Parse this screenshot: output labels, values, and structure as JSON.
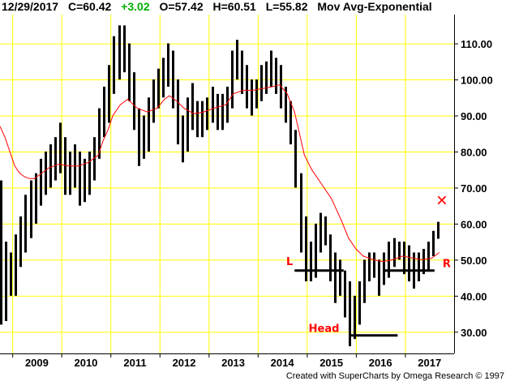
{
  "header": {
    "date": "12/29/2017",
    "close": "C=60.42",
    "change": "+3.02",
    "open": "O=57.42",
    "high": "H=60.51",
    "low": "L=55.82",
    "indicator": "Mov Avg-Exponential"
  },
  "footer": {
    "credit": "Created with SuperCharts by Omega Research © 1997"
  },
  "colors": {
    "background": "#ffffff",
    "grid": "#ffff00",
    "bars": "#000000",
    "moving_average": "#ff0000",
    "annotation": "#ff0000",
    "positive_change": "#00b000"
  },
  "annotations": {
    "left_shoulder": "L",
    "head": "Head",
    "right_shoulder": "R",
    "marker": "✕"
  },
  "chart_data": {
    "type": "bar",
    "title": "",
    "xlabel": "",
    "ylabel": "",
    "x_tick_labels": [
      "2009",
      "2010",
      "2011",
      "2012",
      "2013",
      "2014",
      "2015",
      "2016",
      "2017"
    ],
    "y_tick_labels": [
      "30.00",
      "40.00",
      "50.00",
      "60.00",
      "70.00",
      "80.00",
      "90.00",
      "100.00",
      "110.00"
    ],
    "ylim": [
      24,
      118
    ],
    "xlim": [
      2008.75,
      2018.0
    ],
    "grid": true,
    "price_bars": [
      {
        "year": 2008.77,
        "low": 32,
        "high": 72
      },
      {
        "year": 2008.87,
        "low": 33,
        "high": 55
      },
      {
        "year": 2008.97,
        "low": 40,
        "high": 52
      },
      {
        "year": 2009.07,
        "low": 40,
        "high": 57
      },
      {
        "year": 2009.17,
        "low": 48,
        "high": 62
      },
      {
        "year": 2009.27,
        "low": 52,
        "high": 68
      },
      {
        "year": 2009.37,
        "low": 56,
        "high": 72
      },
      {
        "year": 2009.47,
        "low": 60,
        "high": 74
      },
      {
        "year": 2009.57,
        "low": 65,
        "high": 78
      },
      {
        "year": 2009.67,
        "low": 68,
        "high": 80
      },
      {
        "year": 2009.77,
        "low": 70,
        "high": 82
      },
      {
        "year": 2009.87,
        "low": 72,
        "high": 84
      },
      {
        "year": 2009.97,
        "low": 74,
        "high": 88
      },
      {
        "year": 2010.07,
        "low": 68,
        "high": 84
      },
      {
        "year": 2010.17,
        "low": 68,
        "high": 80
      },
      {
        "year": 2010.27,
        "low": 70,
        "high": 82
      },
      {
        "year": 2010.37,
        "low": 65,
        "high": 80
      },
      {
        "year": 2010.47,
        "low": 66,
        "high": 78
      },
      {
        "year": 2010.57,
        "low": 68,
        "high": 80
      },
      {
        "year": 2010.67,
        "low": 72,
        "high": 84
      },
      {
        "year": 2010.77,
        "low": 78,
        "high": 92
      },
      {
        "year": 2010.87,
        "low": 84,
        "high": 98
      },
      {
        "year": 2010.97,
        "low": 88,
        "high": 104
      },
      {
        "year": 2011.07,
        "low": 96,
        "high": 112
      },
      {
        "year": 2011.17,
        "low": 100,
        "high": 115
      },
      {
        "year": 2011.27,
        "low": 102,
        "high": 115
      },
      {
        "year": 2011.37,
        "low": 94,
        "high": 110
      },
      {
        "year": 2011.47,
        "low": 86,
        "high": 102
      },
      {
        "year": 2011.57,
        "low": 76,
        "high": 92
      },
      {
        "year": 2011.67,
        "low": 78,
        "high": 90
      },
      {
        "year": 2011.77,
        "low": 80,
        "high": 95
      },
      {
        "year": 2011.87,
        "low": 88,
        "high": 100
      },
      {
        "year": 2011.97,
        "low": 92,
        "high": 103
      },
      {
        "year": 2012.07,
        "low": 95,
        "high": 106
      },
      {
        "year": 2012.17,
        "low": 98,
        "high": 110
      },
      {
        "year": 2012.27,
        "low": 92,
        "high": 108
      },
      {
        "year": 2012.37,
        "low": 82,
        "high": 100
      },
      {
        "year": 2012.47,
        "low": 77,
        "high": 90
      },
      {
        "year": 2012.57,
        "low": 80,
        "high": 95
      },
      {
        "year": 2012.67,
        "low": 86,
        "high": 99
      },
      {
        "year": 2012.77,
        "low": 84,
        "high": 94
      },
      {
        "year": 2012.87,
        "low": 84,
        "high": 94
      },
      {
        "year": 2012.97,
        "low": 86,
        "high": 95
      },
      {
        "year": 2013.07,
        "low": 88,
        "high": 98
      },
      {
        "year": 2013.17,
        "low": 86,
        "high": 96
      },
      {
        "year": 2013.27,
        "low": 86,
        "high": 96
      },
      {
        "year": 2013.37,
        "low": 88,
        "high": 98
      },
      {
        "year": 2013.47,
        "low": 92,
        "high": 108
      },
      {
        "year": 2013.57,
        "low": 100,
        "high": 111
      },
      {
        "year": 2013.67,
        "low": 96,
        "high": 108
      },
      {
        "year": 2013.77,
        "low": 92,
        "high": 104
      },
      {
        "year": 2013.87,
        "low": 90,
        "high": 100
      },
      {
        "year": 2013.97,
        "low": 92,
        "high": 100
      },
      {
        "year": 2014.07,
        "low": 94,
        "high": 104
      },
      {
        "year": 2014.17,
        "low": 96,
        "high": 105
      },
      {
        "year": 2014.27,
        "low": 98,
        "high": 108
      },
      {
        "year": 2014.37,
        "low": 96,
        "high": 106
      },
      {
        "year": 2014.47,
        "low": 92,
        "high": 104
      },
      {
        "year": 2014.57,
        "low": 88,
        "high": 98
      },
      {
        "year": 2014.67,
        "low": 82,
        "high": 94
      },
      {
        "year": 2014.77,
        "low": 70,
        "high": 86
      },
      {
        "year": 2014.87,
        "low": 52,
        "high": 74
      },
      {
        "year": 2014.97,
        "low": 44,
        "high": 62
      },
      {
        "year": 2015.07,
        "low": 44,
        "high": 55
      },
      {
        "year": 2015.17,
        "low": 45,
        "high": 60
      },
      {
        "year": 2015.27,
        "low": 52,
        "high": 63
      },
      {
        "year": 2015.37,
        "low": 54,
        "high": 62
      },
      {
        "year": 2015.47,
        "low": 44,
        "high": 57
      },
      {
        "year": 2015.57,
        "low": 38,
        "high": 52
      },
      {
        "year": 2015.67,
        "low": 40,
        "high": 50
      },
      {
        "year": 2015.77,
        "low": 34,
        "high": 47
      },
      {
        "year": 2015.87,
        "low": 26,
        "high": 44
      },
      {
        "year": 2015.97,
        "low": 28,
        "high": 40
      },
      {
        "year": 2016.07,
        "low": 32,
        "high": 44
      },
      {
        "year": 2016.17,
        "low": 38,
        "high": 50
      },
      {
        "year": 2016.27,
        "low": 44,
        "high": 52
      },
      {
        "year": 2016.37,
        "low": 45,
        "high": 52
      },
      {
        "year": 2016.47,
        "low": 40,
        "high": 50
      },
      {
        "year": 2016.57,
        "low": 43,
        "high": 52
      },
      {
        "year": 2016.67,
        "low": 45,
        "high": 55
      },
      {
        "year": 2016.77,
        "low": 48,
        "high": 56
      },
      {
        "year": 2016.87,
        "low": 50,
        "high": 55
      },
      {
        "year": 2016.97,
        "low": 46,
        "high": 55
      },
      {
        "year": 2017.07,
        "low": 44,
        "high": 54
      },
      {
        "year": 2017.17,
        "low": 42,
        "high": 52
      },
      {
        "year": 2017.27,
        "low": 44,
        "high": 52
      },
      {
        "year": 2017.37,
        "low": 46,
        "high": 53
      },
      {
        "year": 2017.47,
        "low": 47,
        "high": 55
      },
      {
        "year": 2017.57,
        "low": 51,
        "high": 58
      },
      {
        "year": 2017.67,
        "low": 55.82,
        "high": 60.51
      }
    ],
    "moving_average": {
      "name": "",
      "points": [
        [
          2008.75,
          87
        ],
        [
          2008.85,
          84
        ],
        [
          2008.95,
          80
        ],
        [
          2009.05,
          76
        ],
        [
          2009.15,
          74
        ],
        [
          2009.25,
          73
        ],
        [
          2009.35,
          72.5
        ],
        [
          2009.45,
          72.5
        ],
        [
          2009.55,
          73.5
        ],
        [
          2009.65,
          74.5
        ],
        [
          2009.75,
          75.5
        ],
        [
          2009.85,
          76
        ],
        [
          2009.95,
          76.5
        ],
        [
          2010.15,
          76
        ],
        [
          2010.35,
          76
        ],
        [
          2010.55,
          77
        ],
        [
          2010.75,
          79
        ],
        [
          2010.85,
          83
        ],
        [
          2010.95,
          86
        ],
        [
          2011.05,
          90
        ],
        [
          2011.2,
          93
        ],
        [
          2011.35,
          94.5
        ],
        [
          2011.55,
          92
        ],
        [
          2011.75,
          91
        ],
        [
          2011.95,
          92
        ],
        [
          2012.1,
          94.5
        ],
        [
          2012.2,
          95.5
        ],
        [
          2012.35,
          94
        ],
        [
          2012.5,
          92
        ],
        [
          2012.7,
          90.5
        ],
        [
          2012.9,
          91
        ],
        [
          2013.1,
          92
        ],
        [
          2013.35,
          93
        ],
        [
          2013.5,
          96
        ],
        [
          2013.7,
          97
        ],
        [
          2013.9,
          97
        ],
        [
          2014.1,
          97.5
        ],
        [
          2014.3,
          98
        ],
        [
          2014.45,
          98.5
        ],
        [
          2014.6,
          96
        ],
        [
          2014.75,
          91
        ],
        [
          2014.85,
          85
        ],
        [
          2014.95,
          79
        ],
        [
          2015.1,
          75
        ],
        [
          2015.3,
          71
        ],
        [
          2015.5,
          67
        ],
        [
          2015.7,
          61
        ],
        [
          2015.85,
          56
        ],
        [
          2016.0,
          53
        ],
        [
          2016.15,
          51
        ],
        [
          2016.35,
          50
        ],
        [
          2016.55,
          49.5
        ],
        [
          2016.75,
          50
        ],
        [
          2016.95,
          51
        ],
        [
          2017.15,
          50.5
        ],
        [
          2017.35,
          50
        ],
        [
          2017.55,
          50.5
        ],
        [
          2017.7,
          52
        ]
      ]
    },
    "levels": [
      {
        "from": 2014.75,
        "to": 2015.75,
        "value": 47
      },
      {
        "from": 2015.87,
        "to": 2016.85,
        "value": 29
      },
      {
        "from": 2016.57,
        "to": 2017.6,
        "value": 47
      }
    ],
    "text_annotations": [
      {
        "label_key": "left_shoulder",
        "year": 2014.65,
        "value": 48.5
      },
      {
        "label_key": "head",
        "year": 2015.35,
        "value": 30
      },
      {
        "label_key": "right_shoulder",
        "year": 2017.85,
        "value": 48
      },
      {
        "label_key": "marker",
        "year": 2017.75,
        "value": 65
      }
    ]
  }
}
